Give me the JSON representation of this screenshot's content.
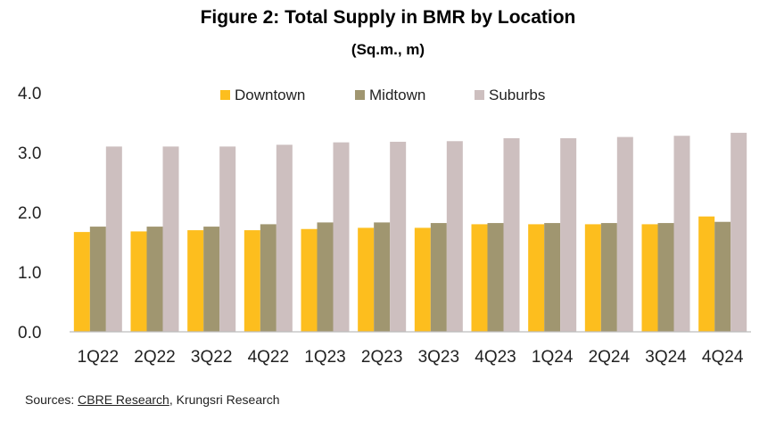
{
  "chart_data": {
    "type": "bar",
    "title": "Figure 2: Total Supply in BMR by Location",
    "subtitle": "(Sq.m., m)",
    "categories": [
      "1Q22",
      "2Q22",
      "3Q22",
      "4Q22",
      "1Q23",
      "2Q23",
      "3Q23",
      "4Q23",
      "1Q24",
      "2Q24",
      "3Q24",
      "4Q24"
    ],
    "series": [
      {
        "name": "Downtown",
        "color": "#FDBE1E",
        "values": [
          1.67,
          1.68,
          1.7,
          1.7,
          1.72,
          1.74,
          1.74,
          1.8,
          1.8,
          1.8,
          1.8,
          1.93
        ]
      },
      {
        "name": "Midtown",
        "color": "#A09670",
        "values": [
          1.76,
          1.76,
          1.76,
          1.8,
          1.83,
          1.83,
          1.82,
          1.82,
          1.82,
          1.82,
          1.82,
          1.84
        ]
      },
      {
        "name": "Suburbs",
        "color": "#CDBFBF",
        "values": [
          3.1,
          3.1,
          3.1,
          3.13,
          3.17,
          3.18,
          3.19,
          3.24,
          3.24,
          3.26,
          3.28,
          3.33
        ]
      }
    ],
    "ylim": [
      0,
      4.0
    ],
    "yticks": [
      "0.0",
      "1.0",
      "2.0",
      "3.0",
      "4.0"
    ],
    "ytick_values": [
      0,
      1,
      2,
      3,
      4
    ],
    "legend": "top",
    "grid": false
  },
  "source": {
    "prefix": "Sources:",
    "link": "CBRE Research",
    "suffix": ", Krungsri Research"
  }
}
